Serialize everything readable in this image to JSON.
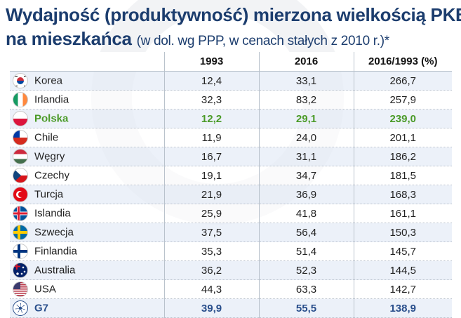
{
  "title": {
    "line1": "Wydajność (produktywność) mierzona wielkością PKB",
    "line2_main": "na mieszkańca",
    "line2_sub": "(w dol. wg PPP, w cenach stałych z 2010 r.)*"
  },
  "chart_data": {
    "type": "table",
    "columns": [
      "",
      "1993",
      "2016",
      "2016/1993 (%)"
    ],
    "rows": [
      {
        "country": "Korea",
        "flag": "south-korea-flag-icon",
        "v1993": "12,4",
        "v2016": "33,1",
        "ratio": "266,7",
        "highlight": "none"
      },
      {
        "country": "Irlandia",
        "flag": "ireland-flag-icon",
        "v1993": "32,3",
        "v2016": "83,2",
        "ratio": "257,9",
        "highlight": "none"
      },
      {
        "country": "Polska",
        "flag": "poland-flag-icon",
        "v1993": "12,2",
        "v2016": "29,1",
        "ratio": "239,0",
        "highlight": "green"
      },
      {
        "country": "Chile",
        "flag": "chile-flag-icon",
        "v1993": "11,9",
        "v2016": "24,0",
        "ratio": "201,1",
        "highlight": "none"
      },
      {
        "country": "Węgry",
        "flag": "hungary-flag-icon",
        "v1993": "16,7",
        "v2016": "31,1",
        "ratio": "186,2",
        "highlight": "none"
      },
      {
        "country": "Czechy",
        "flag": "czechia-flag-icon",
        "v1993": "19,1",
        "v2016": "34,7",
        "ratio": "181,5",
        "highlight": "none"
      },
      {
        "country": "Turcja",
        "flag": "turkey-flag-icon",
        "v1993": "21,9",
        "v2016": "36,9",
        "ratio": "168,3",
        "highlight": "none"
      },
      {
        "country": "Islandia",
        "flag": "iceland-flag-icon",
        "v1993": "25,9",
        "v2016": "41,8",
        "ratio": "161,1",
        "highlight": "none"
      },
      {
        "country": "Szwecja",
        "flag": "sweden-flag-icon",
        "v1993": "37,5",
        "v2016": "56,4",
        "ratio": "150,3",
        "highlight": "none"
      },
      {
        "country": "Finlandia",
        "flag": "finland-flag-icon",
        "v1993": "35,3",
        "v2016": "51,4",
        "ratio": "145,7",
        "highlight": "none"
      },
      {
        "country": "Australia",
        "flag": "australia-flag-icon",
        "v1993": "36,2",
        "v2016": "52,3",
        "ratio": "144,5",
        "highlight": "none"
      },
      {
        "country": "USA",
        "flag": "usa-flag-icon",
        "v1993": "44,3",
        "v2016": "63,3",
        "ratio": "142,7",
        "highlight": "none"
      },
      {
        "country": "G7",
        "flag": "g7-emblem-icon",
        "v1993": "39,9",
        "v2016": "55,5",
        "ratio": "138,9",
        "highlight": "blue"
      }
    ]
  },
  "colors": {
    "title": "#1c3d6e",
    "highlight_green": "#4a9a28",
    "highlight_blue": "#2a4f8c",
    "row_band": "#e4ecf6"
  }
}
